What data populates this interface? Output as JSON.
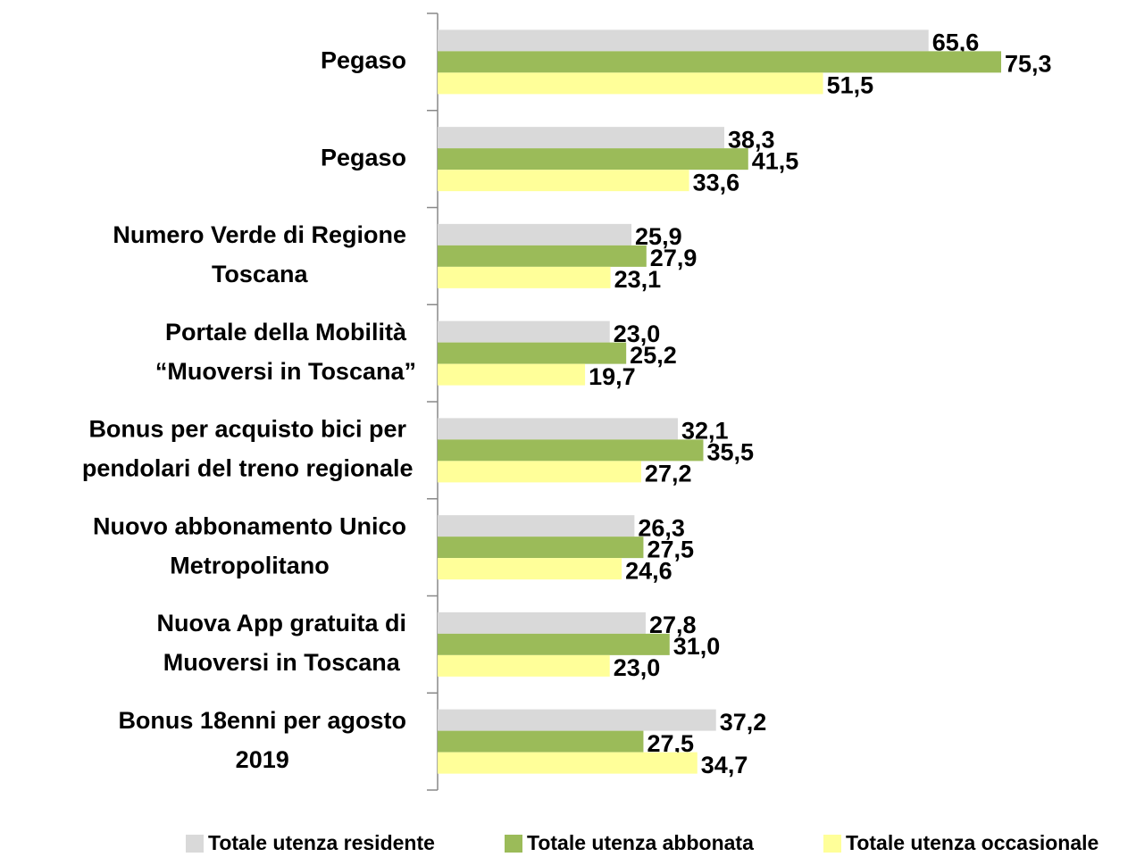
{
  "chart_data": {
    "type": "hbar",
    "categories": [
      [
        "Pegaso"
      ],
      [
        "Pegaso"
      ],
      [
        "Numero Verde di Regione",
        "Toscana"
      ],
      [
        "Portale della Mobilità",
        "“Muoversi in Toscana”"
      ],
      [
        "Bonus per acquisto bici per",
        "pendolari del treno regionale"
      ],
      [
        "Nuovo abbonamento Unico",
        "Metropolitano"
      ],
      [
        "Nuova App gratuita di",
        "Muoversi in Toscana"
      ],
      [
        "Bonus 18enni per agosto",
        "2019"
      ]
    ],
    "series": [
      {
        "name": "Totale utenza residente",
        "color": "#d9d9d9",
        "values": [
          65.6,
          38.3,
          25.9,
          23.0,
          32.1,
          26.3,
          27.8,
          37.2
        ],
        "value_labels": [
          "65,6",
          "38,3",
          "25,9",
          "23,0",
          "32,1",
          "26,3",
          "27,8",
          "37,2"
        ]
      },
      {
        "name": "Totale utenza abbonata",
        "color": "#9bbb59",
        "values": [
          75.3,
          41.5,
          27.9,
          25.2,
          35.5,
          27.5,
          31.0,
          27.5
        ],
        "value_labels": [
          "75,3",
          "41,5",
          "27,9",
          "25,2",
          "35,5",
          "27,5",
          "31,0",
          "27,5"
        ]
      },
      {
        "name": "Totale utenza occasionale",
        "color": "#ffff99",
        "values": [
          51.5,
          33.6,
          23.1,
          19.7,
          27.2,
          24.6,
          23.0,
          34.7
        ],
        "value_labels": [
          "51,5",
          "33,6",
          "23,1",
          "19,7",
          "27,2",
          "24,6",
          "23,0",
          "34,7"
        ]
      }
    ],
    "xlim": [
      0,
      80
    ],
    "legend": "bottom"
  }
}
